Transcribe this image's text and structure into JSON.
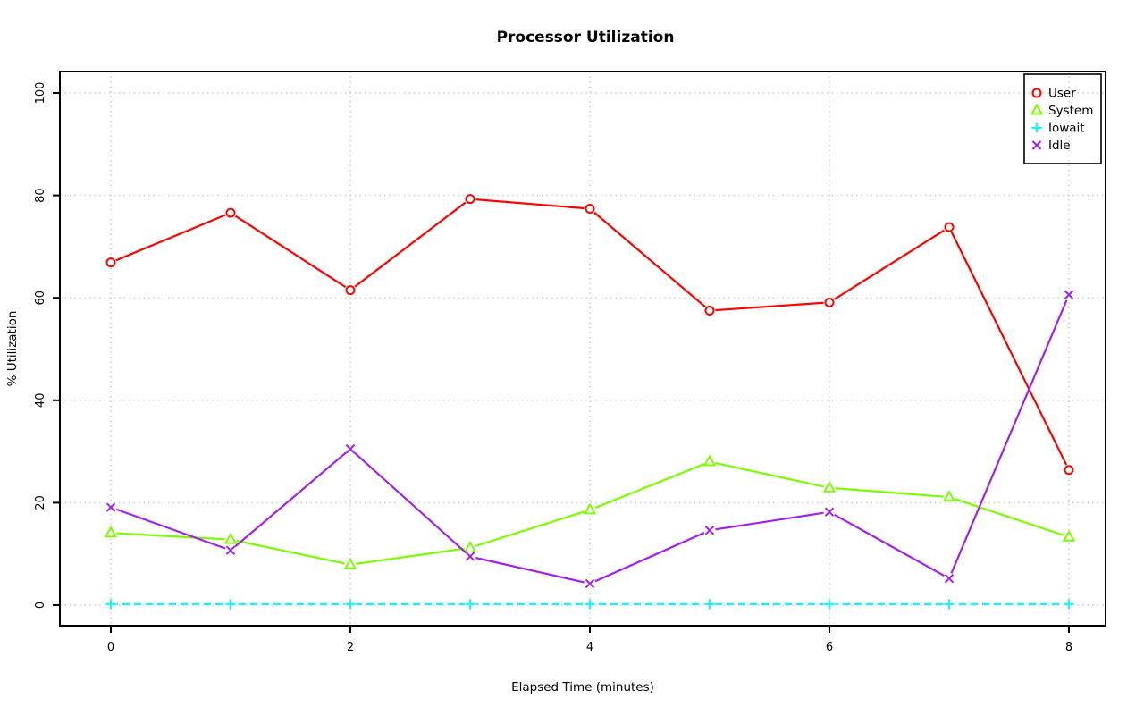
{
  "chart_data": {
    "type": "line",
    "title": "Processor Utilization",
    "xlabel": "Elapsed Time (minutes)",
    "ylabel": "% Utilization",
    "x": [
      0,
      1,
      2,
      3,
      4,
      5,
      6,
      7,
      8
    ],
    "xlim": [
      0,
      8
    ],
    "ylim": [
      0,
      100
    ],
    "x_ticks": [
      0,
      2,
      4,
      6,
      8
    ],
    "y_ticks": [
      0,
      20,
      40,
      60,
      80,
      100
    ],
    "grid": true,
    "grid_style": "dotted",
    "grid_color": "#c9c9c9",
    "axis_color": "#000000",
    "background_color": "#ffffff",
    "legend_position": "top-right",
    "series": [
      {
        "name": "User",
        "color": "#ff0000",
        "marker": "circle",
        "line_style": "solid",
        "values": [
          66.9,
          76.6,
          61.5,
          79.3,
          77.4,
          57.5,
          59.1,
          73.8,
          26.4
        ]
      },
      {
        "name": "System",
        "color": "#7cfc00",
        "marker": "triangle",
        "line_style": "solid",
        "values": [
          14.1,
          12.8,
          7.9,
          11.2,
          18.6,
          28.0,
          22.9,
          21.1,
          13.3
        ]
      },
      {
        "name": "Iowait",
        "color": "#00ffff",
        "marker": "plus",
        "line_style": "dashed",
        "values": [
          0.2,
          0.2,
          0.2,
          0.2,
          0.2,
          0.2,
          0.2,
          0.2,
          0.2
        ]
      },
      {
        "name": "Idle",
        "color": "#a020f0",
        "marker": "x",
        "line_style": "solid",
        "values": [
          19.1,
          10.7,
          30.5,
          9.5,
          4.2,
          14.6,
          18.2,
          5.2,
          60.6
        ]
      }
    ]
  }
}
